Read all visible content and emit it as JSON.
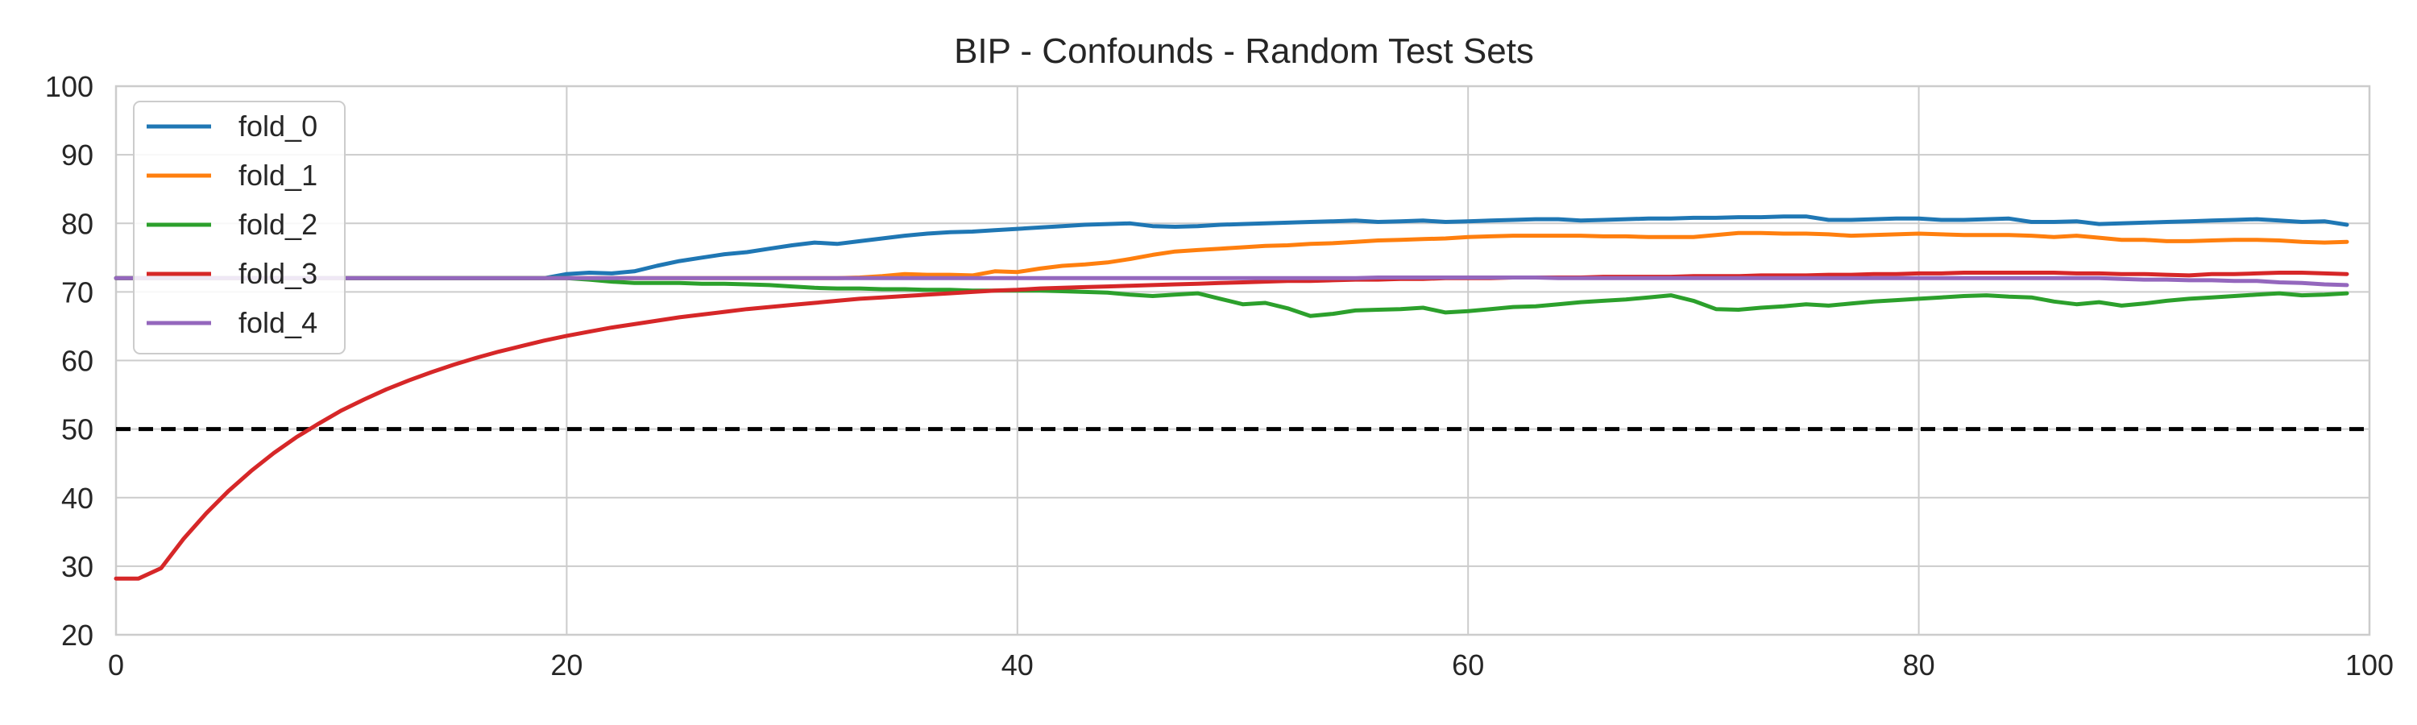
{
  "chart_data": {
    "type": "line",
    "title": "BIP - Confounds - Random Test Sets",
    "xlabel": "",
    "ylabel": "",
    "xlim": [
      0,
      100
    ],
    "ylim": [
      20,
      100
    ],
    "xticks": [
      0,
      20,
      40,
      60,
      80,
      100
    ],
    "yticks": [
      20,
      30,
      40,
      50,
      60,
      70,
      80,
      90,
      100
    ],
    "grid": true,
    "legend_position": "top-left",
    "reference_line": {
      "y": 50,
      "style": "dashed",
      "color": "#000000"
    },
    "x": [
      0,
      1,
      2,
      3,
      4,
      5,
      6,
      7,
      8,
      9,
      10,
      11,
      12,
      13,
      14,
      15,
      16,
      17,
      18,
      19,
      20,
      21,
      22,
      23,
      24,
      25,
      26,
      27,
      28,
      29,
      30,
      31,
      32,
      33,
      34,
      35,
      36,
      37,
      38,
      39,
      40,
      41,
      42,
      43,
      44,
      45,
      46,
      47,
      48,
      49,
      50,
      51,
      52,
      53,
      54,
      55,
      56,
      57,
      58,
      59,
      60,
      61,
      62,
      63,
      64,
      65,
      66,
      67,
      68,
      69,
      70,
      71,
      72,
      73,
      74,
      75,
      76,
      77,
      78,
      79,
      80,
      81,
      82,
      83,
      84,
      85,
      86,
      87,
      88,
      89,
      90,
      91,
      92,
      93,
      94,
      95,
      96,
      97,
      98,
      99
    ],
    "series": [
      {
        "name": "fold_0",
        "color": "#1f77b4",
        "values": [
          72,
          72,
          72,
          72,
          72,
          72,
          72,
          72,
          72,
          72,
          72,
          72,
          72,
          72,
          72,
          72,
          72,
          72,
          72,
          72,
          72.6,
          72.8,
          72.7,
          73,
          73.8,
          74.5,
          75,
          75.5,
          75.8,
          76.3,
          76.8,
          77.2,
          77,
          77.4,
          77.8,
          78.2,
          78.5,
          78.7,
          78.8,
          79,
          79.2,
          79.4,
          79.6,
          79.8,
          79.9,
          80,
          79.6,
          79.5,
          79.6,
          79.8,
          79.9,
          80,
          80.1,
          80.2,
          80.3,
          80.4,
          80.2,
          80.3,
          80.4,
          80.2,
          80.3,
          80.4,
          80.5,
          80.6,
          80.6,
          80.4,
          80.5,
          80.6,
          80.7,
          80.7,
          80.8,
          80.8,
          80.9,
          80.9,
          81,
          81,
          80.5,
          80.5,
          80.6,
          80.7,
          80.7,
          80.5,
          80.5,
          80.6,
          80.7,
          80.2,
          80.2,
          80.3,
          79.9,
          80,
          80.1,
          80.2,
          80.3,
          80.4,
          80.5,
          80.6,
          80.4,
          80.2,
          80.3,
          79.8
        ]
      },
      {
        "name": "fold_1",
        "color": "#ff7f0e",
        "values": [
          72,
          72,
          72,
          72,
          72,
          72,
          72,
          72,
          72,
          72,
          72,
          72,
          72,
          72,
          72,
          72,
          72,
          72,
          72,
          72,
          72,
          72,
          72,
          72,
          72,
          72,
          72,
          72,
          72,
          72,
          72,
          72,
          72,
          72.1,
          72.3,
          72.6,
          72.5,
          72.5,
          72.4,
          73,
          72.9,
          73.4,
          73.8,
          74,
          74.3,
          74.8,
          75.4,
          75.9,
          76.1,
          76.3,
          76.5,
          76.7,
          76.8,
          77,
          77.1,
          77.3,
          77.5,
          77.6,
          77.7,
          77.8,
          78,
          78.1,
          78.2,
          78.2,
          78.2,
          78.2,
          78.1,
          78.1,
          78,
          78,
          78,
          78.3,
          78.6,
          78.6,
          78.5,
          78.5,
          78.4,
          78.2,
          78.3,
          78.4,
          78.5,
          78.4,
          78.3,
          78.3,
          78.3,
          78.2,
          78,
          78.2,
          77.9,
          77.6,
          77.6,
          77.4,
          77.4,
          77.5,
          77.6,
          77.6,
          77.5,
          77.3,
          77.2,
          77.3
        ]
      },
      {
        "name": "fold_2",
        "color": "#2ca02c",
        "values": [
          72,
          72,
          72,
          72,
          72,
          72,
          72,
          72,
          72,
          72,
          72,
          72,
          72,
          72,
          72,
          72,
          72,
          72,
          72,
          72,
          72,
          71.8,
          71.5,
          71.3,
          71.3,
          71.3,
          71.2,
          71.2,
          71.1,
          71,
          70.8,
          70.6,
          70.5,
          70.5,
          70.4,
          70.4,
          70.3,
          70.3,
          70.2,
          70.2,
          70.2,
          70.2,
          70.1,
          70,
          69.9,
          69.6,
          69.4,
          69.6,
          69.8,
          69,
          68.2,
          68.4,
          67.6,
          66.5,
          66.8,
          67.3,
          67.4,
          67.5,
          67.7,
          67,
          67.2,
          67.5,
          67.8,
          67.9,
          68.2,
          68.5,
          68.7,
          68.9,
          69.2,
          69.5,
          68.7,
          67.5,
          67.4,
          67.7,
          67.9,
          68.2,
          68,
          68.3,
          68.6,
          68.8,
          69,
          69.2,
          69.4,
          69.5,
          69.3,
          69.2,
          68.6,
          68.2,
          68.5,
          68,
          68.3,
          68.7,
          69,
          69.2,
          69.4,
          69.6,
          69.8,
          69.5,
          69.6,
          69.8
        ]
      },
      {
        "name": "fold_3",
        "color": "#d62728",
        "values": [
          28.2,
          28.2,
          29.7,
          34,
          37.7,
          41,
          43.9,
          46.5,
          48.8,
          50.8,
          52.7,
          54.3,
          55.8,
          57.1,
          58.3,
          59.4,
          60.4,
          61.3,
          62.1,
          62.9,
          63.6,
          64.2,
          64.8,
          65.3,
          65.8,
          66.3,
          66.7,
          67.1,
          67.5,
          67.8,
          68.1,
          68.4,
          68.7,
          69,
          69.2,
          69.4,
          69.6,
          69.8,
          70,
          70.2,
          70.3,
          70.5,
          70.6,
          70.7,
          70.8,
          70.9,
          71,
          71.1,
          71.2,
          71.3,
          71.4,
          71.5,
          71.6,
          71.6,
          71.7,
          71.8,
          71.8,
          71.9,
          71.9,
          72,
          72,
          72,
          72.1,
          72.1,
          72.1,
          72.1,
          72.2,
          72.2,
          72.2,
          72.2,
          72.3,
          72.3,
          72.3,
          72.4,
          72.4,
          72.4,
          72.5,
          72.5,
          72.6,
          72.6,
          72.7,
          72.7,
          72.8,
          72.8,
          72.8,
          72.8,
          72.8,
          72.7,
          72.7,
          72.6,
          72.6,
          72.5,
          72.4,
          72.6,
          72.6,
          72.7,
          72.8,
          72.8,
          72.7,
          72.6
        ]
      },
      {
        "name": "fold_4",
        "color": "#9467bd",
        "values": [
          72,
          72,
          72,
          72,
          72,
          72,
          72,
          72,
          72,
          72,
          72,
          72,
          72,
          72,
          72,
          72,
          72,
          72,
          72,
          72,
          72,
          72,
          72,
          72,
          72,
          72,
          72,
          72,
          72,
          72,
          72,
          72,
          72,
          72,
          72,
          72,
          72,
          72,
          72,
          72,
          72,
          72,
          72,
          72,
          72,
          72,
          72,
          72,
          72,
          72,
          72,
          72,
          72,
          72,
          72,
          72,
          72.1,
          72.1,
          72.1,
          72.1,
          72.1,
          72.1,
          72.1,
          72.1,
          72,
          72,
          72,
          72,
          72,
          72,
          72,
          72,
          72,
          72,
          72,
          72,
          72,
          72,
          72,
          72,
          72,
          72,
          72,
          72,
          72,
          72,
          72,
          72,
          72,
          71.9,
          71.8,
          71.8,
          71.7,
          71.7,
          71.6,
          71.6,
          71.4,
          71.3,
          71.1,
          71
        ]
      }
    ]
  }
}
